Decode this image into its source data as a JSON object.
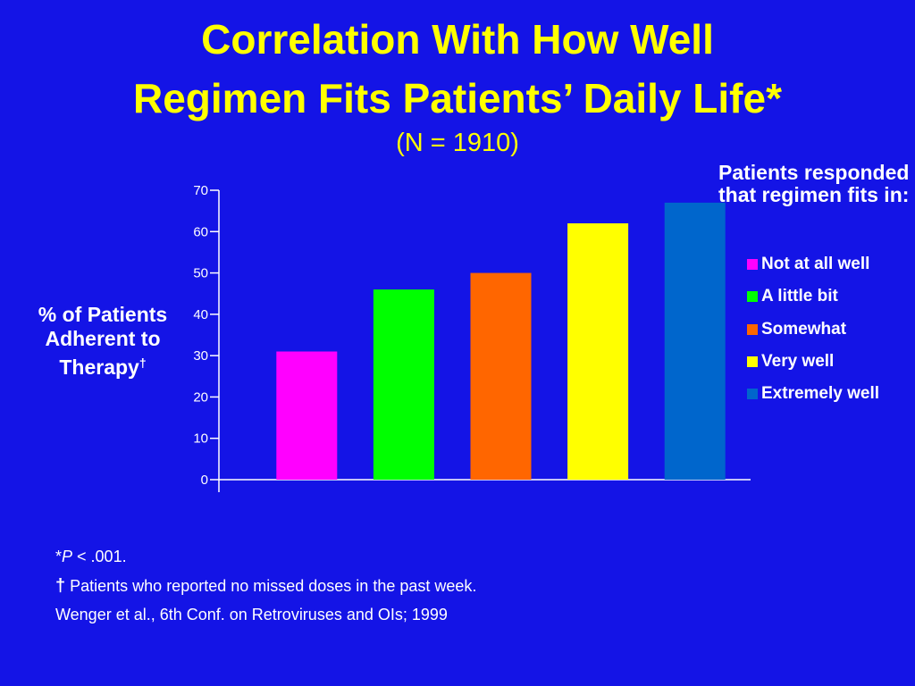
{
  "slide": {
    "title_line1": "Correlation With How Well",
    "title_line2": "Regimen Fits Patients’ Daily Life*",
    "subtitle": "(N = 1910)"
  },
  "chart_data": {
    "type": "bar",
    "ylabel": "% of Patients Adherent to Therapy",
    "ylabel_mark": "†",
    "ylim": [
      0,
      70
    ],
    "yticks": [
      0,
      10,
      20,
      30,
      40,
      50,
      60,
      70
    ],
    "legend_title": "Patients responded that regimen fits in:",
    "legend_position": "right",
    "categories": [
      "Not at all well",
      "A little bit",
      "Somewhat",
      "Very well",
      "Extremely well"
    ],
    "values": [
      31,
      46,
      50,
      62,
      67
    ],
    "colors": [
      "#ff00ff",
      "#00ff00",
      "#ff6600",
      "#ffff00",
      "#0066cc"
    ]
  },
  "colors": {
    "background": "#1414e6",
    "title": "#ffff00",
    "text": "#ffffff"
  },
  "footnotes": {
    "p_star": "*",
    "p_italic": "P",
    "p_rest": " < .001.",
    "dagger_mark": "†",
    "dagger_text": " Patients who reported no missed doses in the past week.",
    "citation": "Wenger et al.,  6th Conf. on Retroviruses and OIs; 1999"
  }
}
